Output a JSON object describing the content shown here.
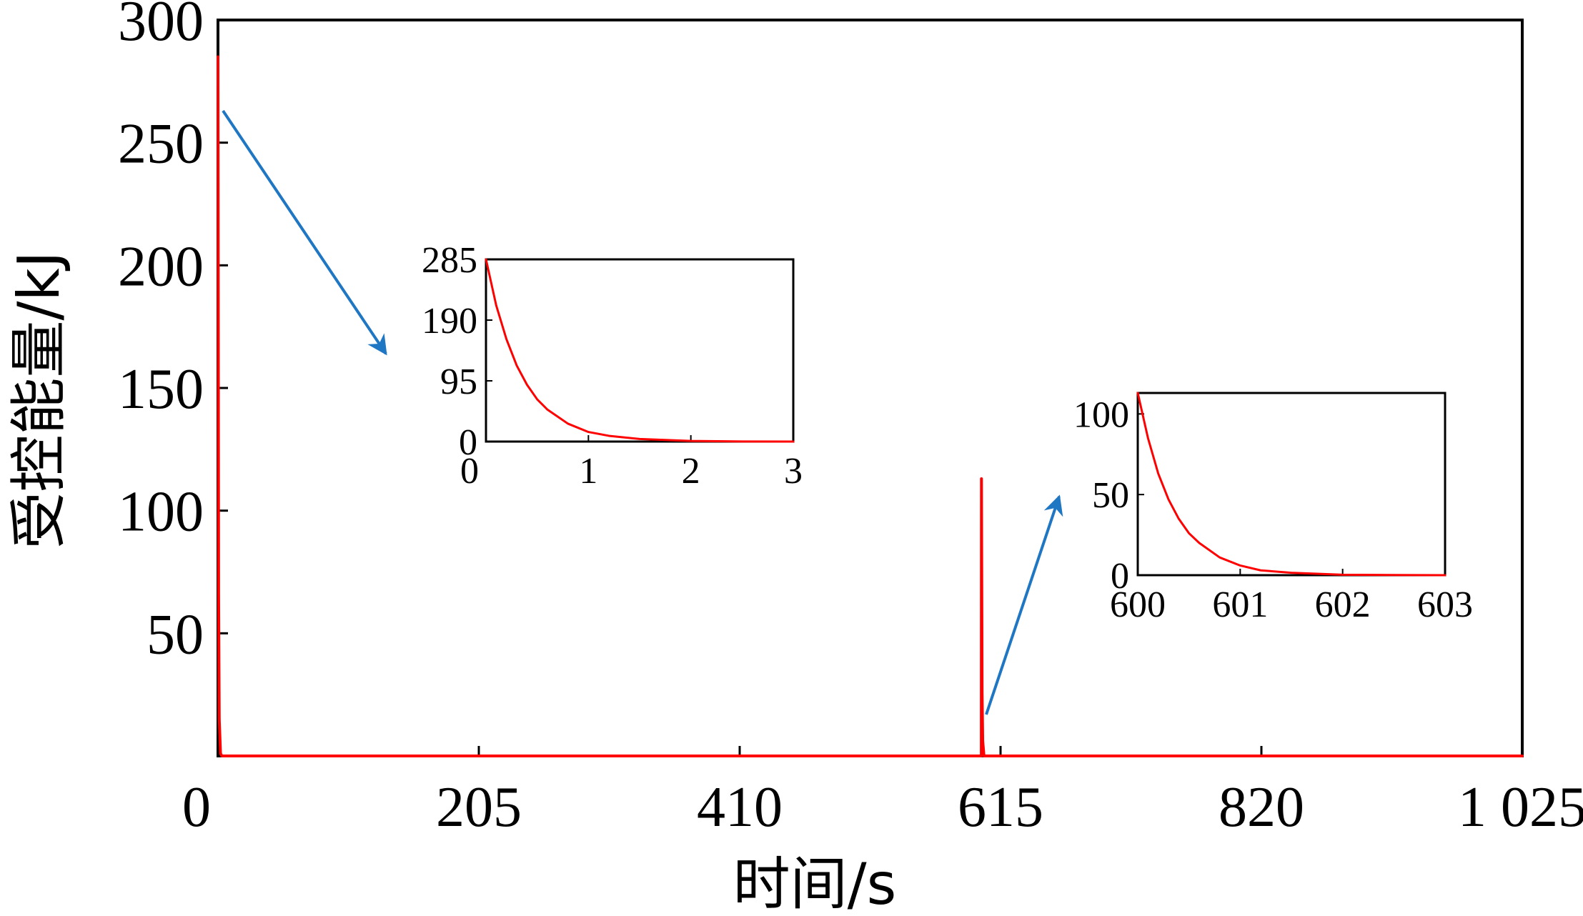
{
  "chart_data": [
    {
      "type": "line",
      "title": "",
      "xlabel": "时间/s",
      "ylabel": "受控能量/kJ",
      "xlim": [
        0,
        1025
      ],
      "ylim": [
        0,
        300
      ],
      "xticks": [
        0,
        205,
        410,
        615,
        820,
        1025
      ],
      "xtick_labels": [
        "0",
        "205",
        "410",
        "615",
        "820",
        "1 025"
      ],
      "yticks": [
        50,
        100,
        150,
        200,
        250,
        300
      ],
      "ytick_labels": [
        "50",
        "100",
        "150",
        "200",
        "250",
        "300"
      ],
      "grid": false,
      "series": [
        {
          "color": "#ff0000",
          "x": [
            0,
            0.5,
            1,
            2,
            3,
            599.9,
            600,
            600.5,
            601,
            602,
            603,
            1025
          ],
          "y": [
            285,
            66,
            15,
            1,
            0,
            0,
            113,
            26,
            6,
            0,
            0,
            0
          ]
        }
      ]
    },
    {
      "type": "line",
      "title": "",
      "inset": "left",
      "xlim": [
        0,
        3
      ],
      "ylim": [
        0,
        285
      ],
      "xticks": [
        0,
        1,
        2,
        3
      ],
      "xtick_labels": [
        "0",
        "1",
        "2",
        "3"
      ],
      "yticks": [
        0,
        95,
        190,
        285
      ],
      "ytick_labels": [
        "0",
        "95",
        "190",
        "285"
      ],
      "series": [
        {
          "color": "#ff0000",
          "x": [
            0,
            0.1,
            0.2,
            0.3,
            0.4,
            0.5,
            0.6,
            0.8,
            1.0,
            1.2,
            1.5,
            2.0,
            2.5,
            3.0
          ],
          "y": [
            285,
            213,
            160,
            119,
            89,
            66,
            50,
            28,
            15,
            9,
            4,
            1,
            0.2,
            0
          ]
        }
      ]
    },
    {
      "type": "line",
      "title": "",
      "inset": "right",
      "xlim": [
        600,
        603
      ],
      "ylim": [
        0,
        113
      ],
      "xticks": [
        600,
        601,
        602,
        603
      ],
      "xtick_labels": [
        "600",
        "601",
        "602",
        "603"
      ],
      "yticks": [
        0,
        50,
        100
      ],
      "ytick_labels": [
        "0",
        "50",
        "100"
      ],
      "series": [
        {
          "color": "#ff0000",
          "x": [
            600,
            600.1,
            600.2,
            600.3,
            600.4,
            600.5,
            600.6,
            600.8,
            601.0,
            601.2,
            601.5,
            602.0,
            602.5,
            603.0
          ],
          "y": [
            113,
            85,
            63,
            47,
            35,
            26,
            20,
            11,
            6,
            3,
            1.5,
            0.3,
            0.1,
            0
          ]
        }
      ]
    }
  ],
  "annotations": {
    "arrow_color": "#1f77c4"
  }
}
